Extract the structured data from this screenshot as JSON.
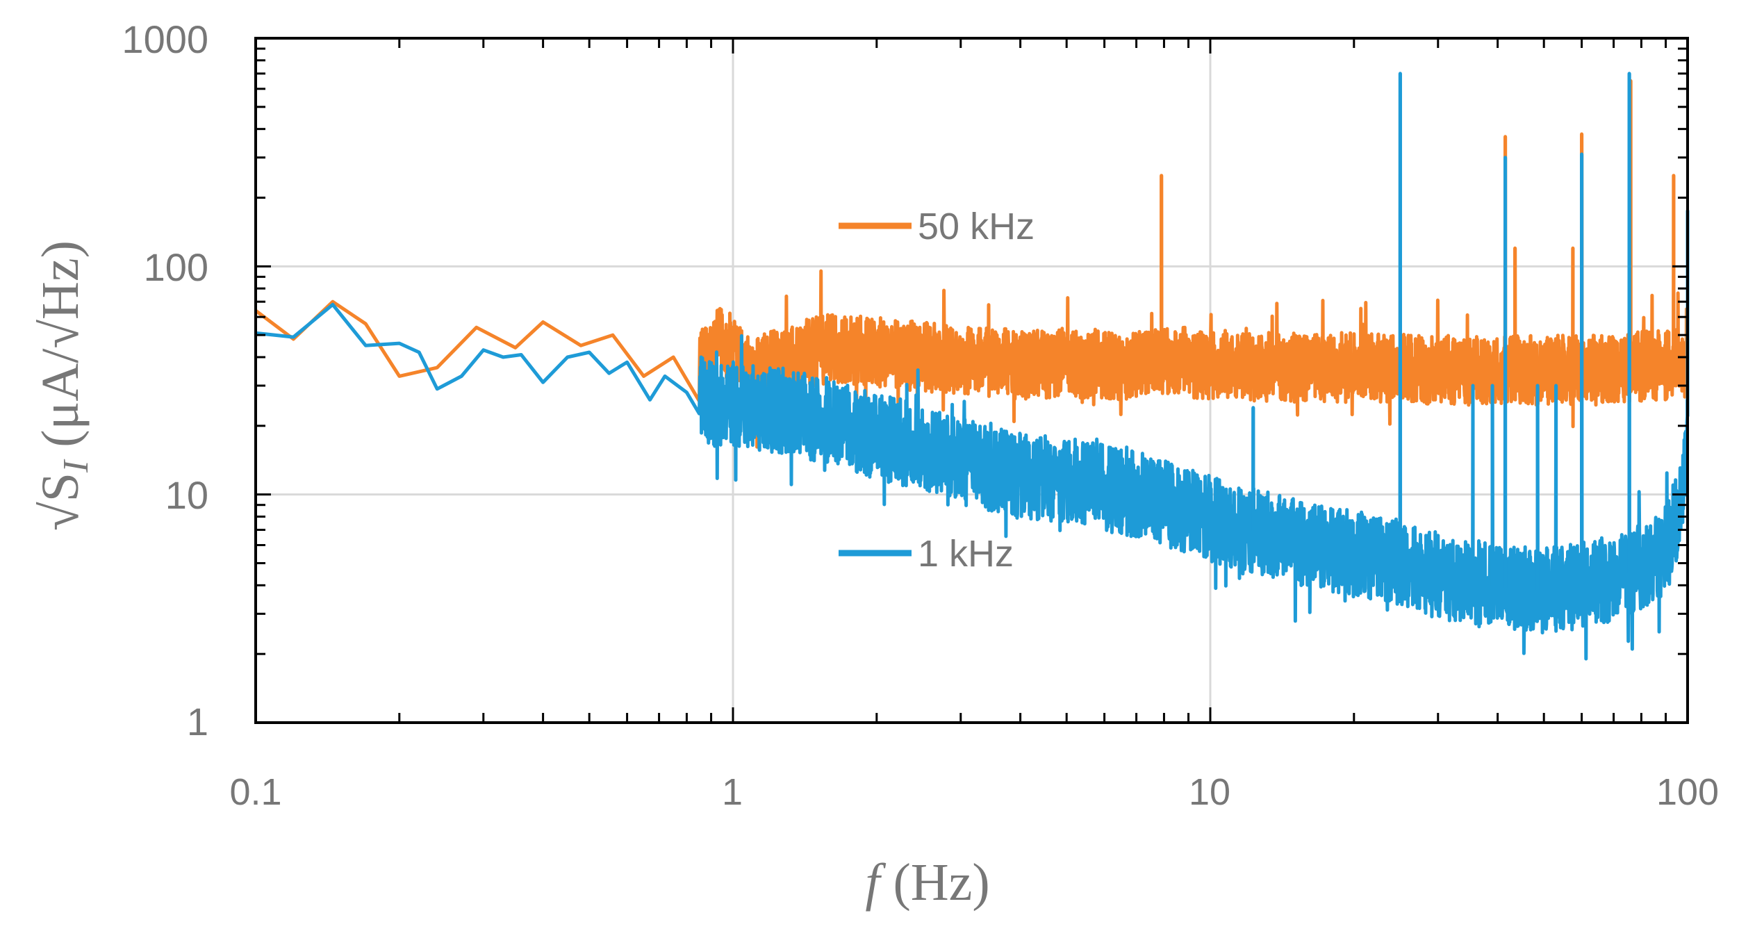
{
  "chart_data": {
    "type": "line",
    "title": "",
    "x_scale": "log",
    "y_scale": "log",
    "xlim": [
      0.1,
      100
    ],
    "ylim": [
      1,
      1000
    ],
    "grid": true,
    "x_ticks": [
      {
        "value": 0.1,
        "label": "0.1"
      },
      {
        "value": 1,
        "label": "1"
      },
      {
        "value": 10,
        "label": "10"
      },
      {
        "value": 100,
        "label": "100"
      }
    ],
    "y_ticks": [
      {
        "value": 1,
        "label": "1"
      },
      {
        "value": 10,
        "label": "10"
      },
      {
        "value": 100,
        "label": "100"
      },
      {
        "value": 1000,
        "label": "1000"
      }
    ],
    "xlabel": {
      "italic_part": "f",
      "rest": " (Hz)"
    },
    "ylabel": {
      "prefix": "√S",
      "subscript": "I",
      "suffix": " (μA/√Hz)"
    },
    "series": [
      {
        "name": "50 kHz",
        "legend_label": "50 kHz",
        "color": "#F5842A",
        "baseline_points": [
          [
            0.1,
            64
          ],
          [
            0.12,
            48
          ],
          [
            0.145,
            70
          ],
          [
            0.17,
            56
          ],
          [
            0.2,
            33
          ],
          [
            0.24,
            36
          ],
          [
            0.29,
            54
          ],
          [
            0.35,
            44
          ],
          [
            0.4,
            57
          ],
          [
            0.48,
            45
          ],
          [
            0.56,
            50
          ],
          [
            0.65,
            33
          ],
          [
            0.75,
            40
          ],
          [
            0.85,
            36
          ],
          [
            0.95,
            48
          ],
          [
            1.1,
            34
          ],
          [
            1.3,
            39
          ],
          [
            1.6,
            44
          ],
          [
            2.0,
            42
          ],
          [
            2.5,
            40
          ],
          [
            3.0,
            39
          ],
          [
            4.0,
            37
          ],
          [
            5.0,
            38
          ],
          [
            6.5,
            37
          ],
          [
            8.0,
            39
          ],
          [
            10.0,
            37
          ],
          [
            15.0,
            36
          ],
          [
            20.0,
            36
          ],
          [
            30.0,
            35
          ],
          [
            50.0,
            35
          ],
          [
            70.0,
            36
          ],
          [
            90.0,
            37
          ],
          [
            100.0,
            38
          ]
        ],
        "noise_spread": 0.34,
        "noise_start": 0.85,
        "peaks": [
          {
            "f": 7.9,
            "v": 250
          },
          {
            "f": 41.5,
            "v": 370
          },
          {
            "f": 43.5,
            "v": 120
          },
          {
            "f": 57.5,
            "v": 120
          },
          {
            "f": 60.0,
            "v": 380
          },
          {
            "f": 76.0,
            "v": 650
          },
          {
            "f": 93.5,
            "v": 250
          },
          {
            "f": 99.5,
            "v": 65
          }
        ]
      },
      {
        "name": "1 kHz",
        "legend_label": "1 kHz",
        "color": "#1E9BD7",
        "baseline_points": [
          [
            0.1,
            51
          ],
          [
            0.12,
            49
          ],
          [
            0.145,
            68
          ],
          [
            0.17,
            45
          ],
          [
            0.2,
            46
          ],
          [
            0.22,
            42
          ],
          [
            0.24,
            29
          ],
          [
            0.27,
            33
          ],
          [
            0.3,
            43
          ],
          [
            0.33,
            40
          ],
          [
            0.36,
            41
          ],
          [
            0.4,
            31
          ],
          [
            0.45,
            40
          ],
          [
            0.5,
            42
          ],
          [
            0.55,
            34
          ],
          [
            0.6,
            38
          ],
          [
            0.67,
            26
          ],
          [
            0.72,
            33
          ],
          [
            0.8,
            28
          ],
          [
            0.9,
            25
          ],
          [
            1.0,
            25
          ],
          [
            1.3,
            23
          ],
          [
            1.6,
            21
          ],
          [
            2.0,
            18
          ],
          [
            2.5,
            16
          ],
          [
            3.0,
            14
          ],
          [
            4.0,
            12
          ],
          [
            5.0,
            11.5
          ],
          [
            7.0,
            10
          ],
          [
            10.0,
            7.8
          ],
          [
            15.0,
            6.2
          ],
          [
            20.0,
            5.5
          ],
          [
            25.0,
            5.0
          ],
          [
            30.0,
            4.4
          ],
          [
            40.0,
            3.9
          ],
          [
            50.0,
            3.8
          ],
          [
            60.0,
            4.0
          ],
          [
            70.0,
            4.3
          ],
          [
            85.0,
            5.0
          ],
          [
            93.0,
            6.5
          ],
          [
            98.0,
            11.0
          ],
          [
            100.0,
            22.0
          ]
        ],
        "noise_spread": 0.42,
        "noise_start": 0.85,
        "peaks": [
          {
            "f": 12.3,
            "v": 24
          },
          {
            "f": 25.0,
            "v": 700
          },
          {
            "f": 35.5,
            "v": 30
          },
          {
            "f": 39.0,
            "v": 30
          },
          {
            "f": 41.5,
            "v": 300
          },
          {
            "f": 48.5,
            "v": 30
          },
          {
            "f": 53.0,
            "v": 30
          },
          {
            "f": 60.0,
            "v": 310
          },
          {
            "f": 75.5,
            "v": 700
          },
          {
            "f": 100.0,
            "v": 175
          }
        ]
      }
    ],
    "legend": [
      {
        "series": "50 kHz",
        "placement": "upper-middle"
      },
      {
        "series": "1 kHz",
        "placement": "lower-middle"
      }
    ]
  },
  "colors": {
    "axis_frame": "#000000",
    "grid": "#D9D9D9",
    "tick_text": "#777777"
  }
}
